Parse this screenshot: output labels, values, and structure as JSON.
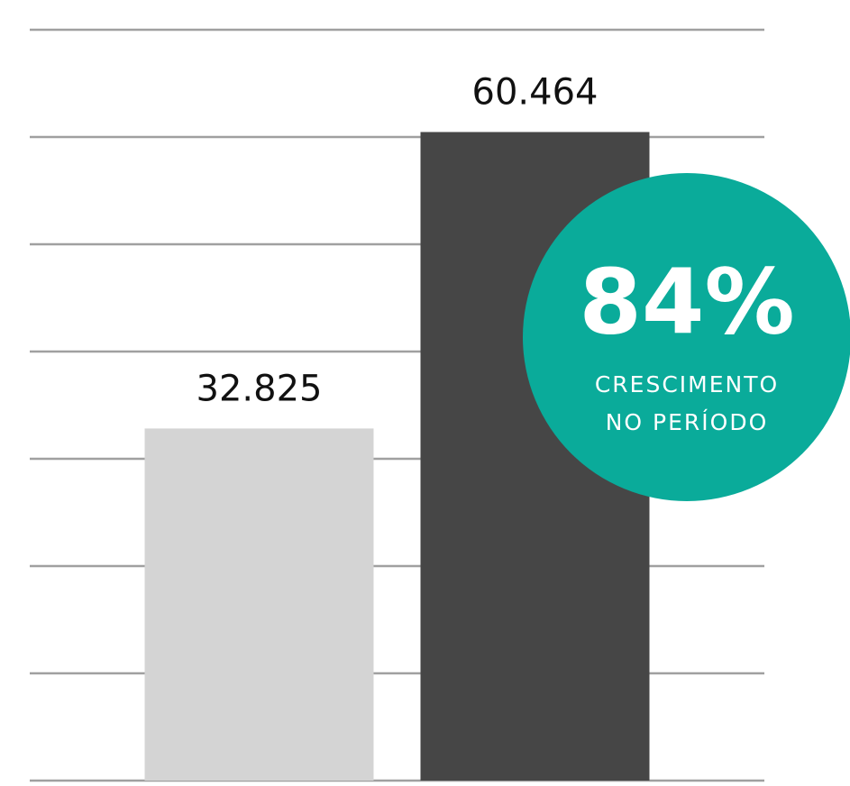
{
  "chart_data": {
    "type": "bar",
    "categories": [
      null,
      null
    ],
    "values": [
      32825,
      60464
    ],
    "value_labels": [
      "32.825",
      "60.464"
    ],
    "colors": [
      "#d4d4d4",
      "#464646"
    ],
    "ylim": [
      0,
      70000
    ],
    "yticks": [
      0,
      10000,
      20000,
      30000,
      40000,
      50000,
      60000,
      70000
    ],
    "grid": true,
    "annotation": {
      "value": "84%",
      "lines": [
        "CRESCIMENTO",
        "NO PERÍODO"
      ],
      "color": "#0aab9a"
    }
  }
}
